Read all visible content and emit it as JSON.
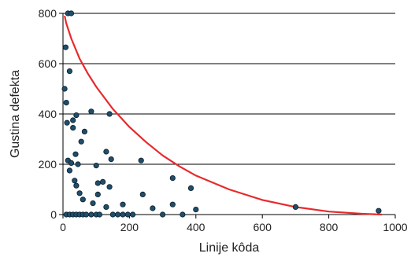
{
  "chart_data": {
    "type": "scatter",
    "title": "",
    "xlabel": "Linije kôda",
    "ylabel": "Gustina defekta",
    "xlim": [
      0,
      1000
    ],
    "ylim": [
      0,
      800
    ],
    "x_ticks": [
      0,
      200,
      400,
      600,
      800,
      1000
    ],
    "y_ticks": [
      0,
      200,
      400,
      600,
      800
    ],
    "grid": "horizontal",
    "legend": "none",
    "colors": {
      "points": "#1f4e6b",
      "point_edge": "#0b1d2a",
      "curve": "#e8292b",
      "grid": "#000000",
      "axis": "#000000"
    },
    "series": [
      {
        "type": "scatter",
        "points": [
          [
            15,
            800
          ],
          [
            25,
            800
          ],
          [
            8,
            665
          ],
          [
            20,
            570
          ],
          [
            5,
            500
          ],
          [
            10,
            445
          ],
          [
            40,
            395
          ],
          [
            30,
            375
          ],
          [
            85,
            410
          ],
          [
            140,
            400
          ],
          [
            12,
            365
          ],
          [
            30,
            345
          ],
          [
            65,
            330
          ],
          [
            55,
            290
          ],
          [
            130,
            250
          ],
          [
            38,
            240
          ],
          [
            145,
            220
          ],
          [
            235,
            215
          ],
          [
            15,
            215
          ],
          [
            25,
            205
          ],
          [
            45,
            200
          ],
          [
            100,
            195
          ],
          [
            20,
            175
          ],
          [
            35,
            135
          ],
          [
            120,
            130
          ],
          [
            105,
            125
          ],
          [
            330,
            145
          ],
          [
            40,
            115
          ],
          [
            140,
            110
          ],
          [
            385,
            105
          ],
          [
            50,
            85
          ],
          [
            105,
            80
          ],
          [
            240,
            80
          ],
          [
            60,
            60
          ],
          [
            90,
            45
          ],
          [
            180,
            40
          ],
          [
            330,
            40
          ],
          [
            130,
            30
          ],
          [
            270,
            25
          ],
          [
            400,
            20
          ],
          [
            10,
            0
          ],
          [
            20,
            0
          ],
          [
            30,
            0
          ],
          [
            40,
            0
          ],
          [
            50,
            0
          ],
          [
            60,
            0
          ],
          [
            70,
            0
          ],
          [
            85,
            0
          ],
          [
            100,
            0
          ],
          [
            110,
            0
          ],
          [
            150,
            0
          ],
          [
            165,
            0
          ],
          [
            180,
            0
          ],
          [
            195,
            0
          ],
          [
            210,
            0
          ],
          [
            300,
            0
          ],
          [
            360,
            0
          ],
          [
            700,
            30
          ],
          [
            950,
            15
          ]
        ]
      },
      {
        "type": "line",
        "curve": [
          [
            5,
            790
          ],
          [
            10,
            760
          ],
          [
            25,
            700
          ],
          [
            50,
            620
          ],
          [
            75,
            560
          ],
          [
            100,
            508
          ],
          [
            150,
            420
          ],
          [
            200,
            348
          ],
          [
            250,
            288
          ],
          [
            300,
            235
          ],
          [
            350,
            192
          ],
          [
            400,
            155
          ],
          [
            500,
            100
          ],
          [
            600,
            58
          ],
          [
            700,
            30
          ],
          [
            800,
            12
          ],
          [
            900,
            3
          ],
          [
            960,
            0
          ]
        ]
      }
    ]
  }
}
